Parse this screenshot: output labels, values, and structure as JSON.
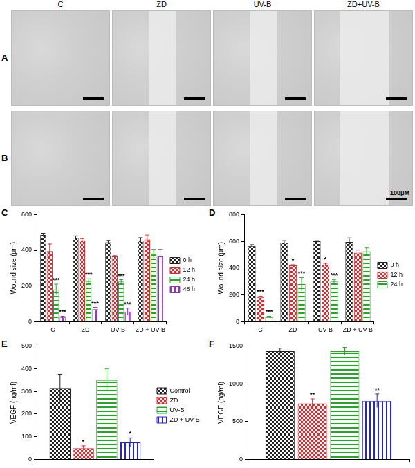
{
  "image_panels": {
    "columns": [
      "C",
      "ZD",
      "UV-B",
      "ZD+UV-B"
    ],
    "rows": [
      "A",
      "B"
    ],
    "scale_bar": "100μM"
  },
  "chart_data": [
    {
      "type": "bar",
      "panel": "C",
      "y_label": "Wound size (μm)",
      "categories": [
        "C",
        "ZD",
        "UV-B",
        "ZD + UV-B"
      ],
      "series": [
        {
          "name": "0 h",
          "color": "#222222",
          "values": [
            485,
            470,
            445,
            455
          ],
          "errors": [
            10,
            10,
            10,
            15
          ],
          "annotations": [
            null,
            null,
            null,
            null
          ]
        },
        {
          "name": "12 h",
          "color": "#e8262a",
          "values": [
            395,
            455,
            365,
            460
          ],
          "errors": [
            40,
            10,
            5,
            25
          ],
          "annotations": [
            null,
            null,
            null,
            null
          ]
        },
        {
          "name": "24 h",
          "color": "#1faa1f",
          "values": [
            180,
            225,
            225,
            380
          ],
          "errors": [
            30,
            15,
            10,
            25
          ],
          "annotations": [
            "***",
            "***",
            "***",
            null
          ]
        },
        {
          "name": "48 h",
          "color": "#9b30c9",
          "values": [
            25,
            70,
            55,
            365
          ],
          "errors": [
            5,
            10,
            20,
            40
          ],
          "annotations": [
            "***",
            "***",
            "***",
            null
          ]
        }
      ],
      "ylim": [
        0,
        600
      ],
      "yticks": [
        0,
        200,
        400,
        600
      ],
      "grid": false,
      "legend": "right"
    },
    {
      "type": "bar",
      "panel": "D",
      "y_label": "Wound size (μm)",
      "categories": [
        "C",
        "ZD",
        "UV-B",
        "ZD + UV-B"
      ],
      "series": [
        {
          "name": "0 h",
          "color": "#222222",
          "values": [
            565,
            590,
            600,
            595
          ],
          "errors": [
            10,
            15,
            5,
            30
          ],
          "annotations": [
            null,
            null,
            null,
            null
          ]
        },
        {
          "name": "12 h",
          "color": "#e8262a",
          "values": [
            185,
            420,
            425,
            515
          ],
          "errors": [
            5,
            5,
            10,
            20
          ],
          "annotations": [
            "***",
            "*",
            "*",
            null
          ]
        },
        {
          "name": "24 h",
          "color": "#1faa1f",
          "values": [
            35,
            280,
            300,
            525
          ],
          "errors": [
            5,
            50,
            15,
            25
          ],
          "annotations": [
            "***",
            "***",
            "***",
            null
          ]
        }
      ],
      "ylim": [
        0,
        800
      ],
      "yticks": [
        0,
        200,
        400,
        600,
        800
      ],
      "grid": false,
      "legend": "right"
    },
    {
      "type": "bar",
      "panel": "E",
      "y_label": "VEGF (ng/ml)",
      "categories": [
        null
      ],
      "series": [
        {
          "name": "Control",
          "color": "#222222",
          "values": [
            315
          ],
          "errors": [
            60
          ],
          "annotations": [
            null
          ]
        },
        {
          "name": "ZD",
          "color": "#e8262a",
          "values": [
            50
          ],
          "errors": [
            10
          ],
          "annotations": [
            "*"
          ]
        },
        {
          "name": "UV-B",
          "color": "#1faa1f",
          "values": [
            350
          ],
          "errors": [
            50
          ],
          "annotations": [
            null
          ]
        },
        {
          "name": "ZD + UV-B",
          "color": "#2424d0",
          "values": [
            75
          ],
          "errors": [
            20
          ],
          "annotations": [
            "*"
          ]
        }
      ],
      "ylim": [
        0,
        500
      ],
      "yticks": [
        0,
        100,
        200,
        300,
        400,
        500
      ],
      "grid": false,
      "legend": "right",
      "tick_labels": "y"
    },
    {
      "type": "bar",
      "panel": "F",
      "y_label": "VEGF (ng/ml)",
      "categories": [
        null
      ],
      "series": [
        {
          "name": "Control",
          "color": "#222222",
          "values": [
            1430
          ],
          "errors": [
            40
          ],
          "annotations": [
            null
          ]
        },
        {
          "name": "ZD",
          "color": "#e8262a",
          "values": [
            740
          ],
          "errors": [
            60
          ],
          "annotations": [
            "**"
          ]
        },
        {
          "name": "UV-B",
          "color": "#1faa1f",
          "values": [
            1430
          ],
          "errors": [
            50
          ],
          "annotations": [
            null
          ]
        },
        {
          "name": "ZD + UV-B",
          "color": "#2424d0",
          "values": [
            775
          ],
          "errors": [
            90
          ],
          "annotations": [
            "**"
          ]
        }
      ],
      "ylim": [
        0,
        1500
      ],
      "yticks": [
        0,
        500,
        1000,
        1500
      ],
      "grid": false,
      "tick_labels": "y"
    }
  ]
}
